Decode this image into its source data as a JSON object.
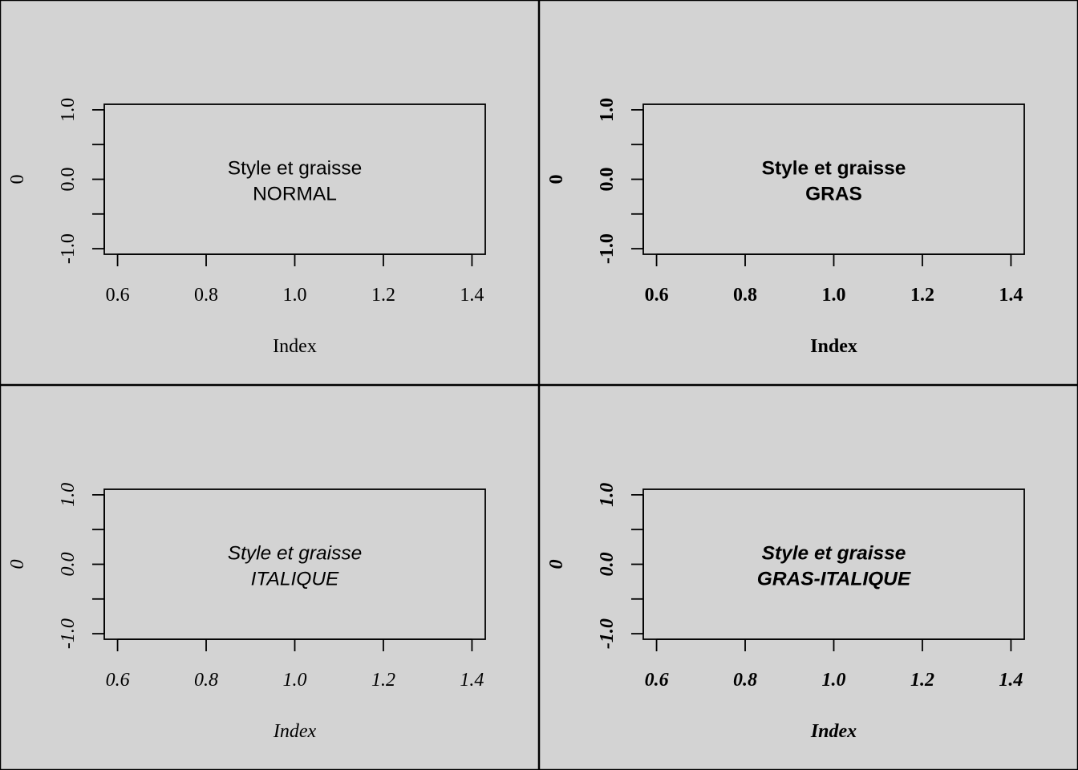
{
  "figure": {
    "background": "#d3d3d3",
    "frame_color": "#000000"
  },
  "chart_data": [
    {
      "type": "scatter",
      "font_style": "normal",
      "font_weight": "normal",
      "title": "",
      "xlabel": "Index",
      "ylabel": "0",
      "xlim": [
        0.57,
        1.43
      ],
      "ylim": [
        -1.08,
        1.08
      ],
      "x_ticks": [
        0.6,
        0.8,
        1.0,
        1.2,
        1.4
      ],
      "x_tick_labels": [
        "0.6",
        "0.8",
        "1.0",
        "1.2",
        "1.4"
      ],
      "y_ticks": [
        -1.0,
        -0.5,
        0.0,
        0.5,
        1.0
      ],
      "y_tick_labels": [
        "-1.0",
        "",
        "0.0",
        "",
        "1.0"
      ],
      "annotation": [
        "Style et graisse",
        "NORMAL"
      ],
      "annotation_position": [
        1.0,
        0.0
      ]
    },
    {
      "type": "scatter",
      "font_style": "normal",
      "font_weight": "bold",
      "title": "",
      "xlabel": "Index",
      "ylabel": "0",
      "xlim": [
        0.57,
        1.43
      ],
      "ylim": [
        -1.08,
        1.08
      ],
      "x_ticks": [
        0.6,
        0.8,
        1.0,
        1.2,
        1.4
      ],
      "x_tick_labels": [
        "0.6",
        "0.8",
        "1.0",
        "1.2",
        "1.4"
      ],
      "y_ticks": [
        -1.0,
        -0.5,
        0.0,
        0.5,
        1.0
      ],
      "y_tick_labels": [
        "-1.0",
        "",
        "0.0",
        "",
        "1.0"
      ],
      "annotation": [
        "Style et graisse",
        "GRAS"
      ],
      "annotation_position": [
        1.0,
        0.0
      ]
    },
    {
      "type": "scatter",
      "font_style": "italic",
      "font_weight": "normal",
      "title": "",
      "xlabel": "Index",
      "ylabel": "0",
      "xlim": [
        0.57,
        1.43
      ],
      "ylim": [
        -1.08,
        1.08
      ],
      "x_ticks": [
        0.6,
        0.8,
        1.0,
        1.2,
        1.4
      ],
      "x_tick_labels": [
        "0.6",
        "0.8",
        "1.0",
        "1.2",
        "1.4"
      ],
      "y_ticks": [
        -1.0,
        -0.5,
        0.0,
        0.5,
        1.0
      ],
      "y_tick_labels": [
        "-1.0",
        "",
        "0.0",
        "",
        "1.0"
      ],
      "annotation": [
        "Style et graisse",
        "ITALIQUE"
      ],
      "annotation_position": [
        1.0,
        0.0
      ]
    },
    {
      "type": "scatter",
      "font_style": "italic",
      "font_weight": "bold",
      "title": "",
      "xlabel": "Index",
      "ylabel": "0",
      "xlim": [
        0.57,
        1.43
      ],
      "ylim": [
        -1.08,
        1.08
      ],
      "x_ticks": [
        0.6,
        0.8,
        1.0,
        1.2,
        1.4
      ],
      "x_tick_labels": [
        "0.6",
        "0.8",
        "1.0",
        "1.2",
        "1.4"
      ],
      "y_ticks": [
        -1.0,
        -0.5,
        0.0,
        0.5,
        1.0
      ],
      "y_tick_labels": [
        "-1.0",
        "",
        "0.0",
        "",
        "1.0"
      ],
      "annotation": [
        "Style et graisse",
        "GRAS-ITALIQUE"
      ],
      "annotation_position": [
        1.0,
        0.0
      ]
    }
  ]
}
